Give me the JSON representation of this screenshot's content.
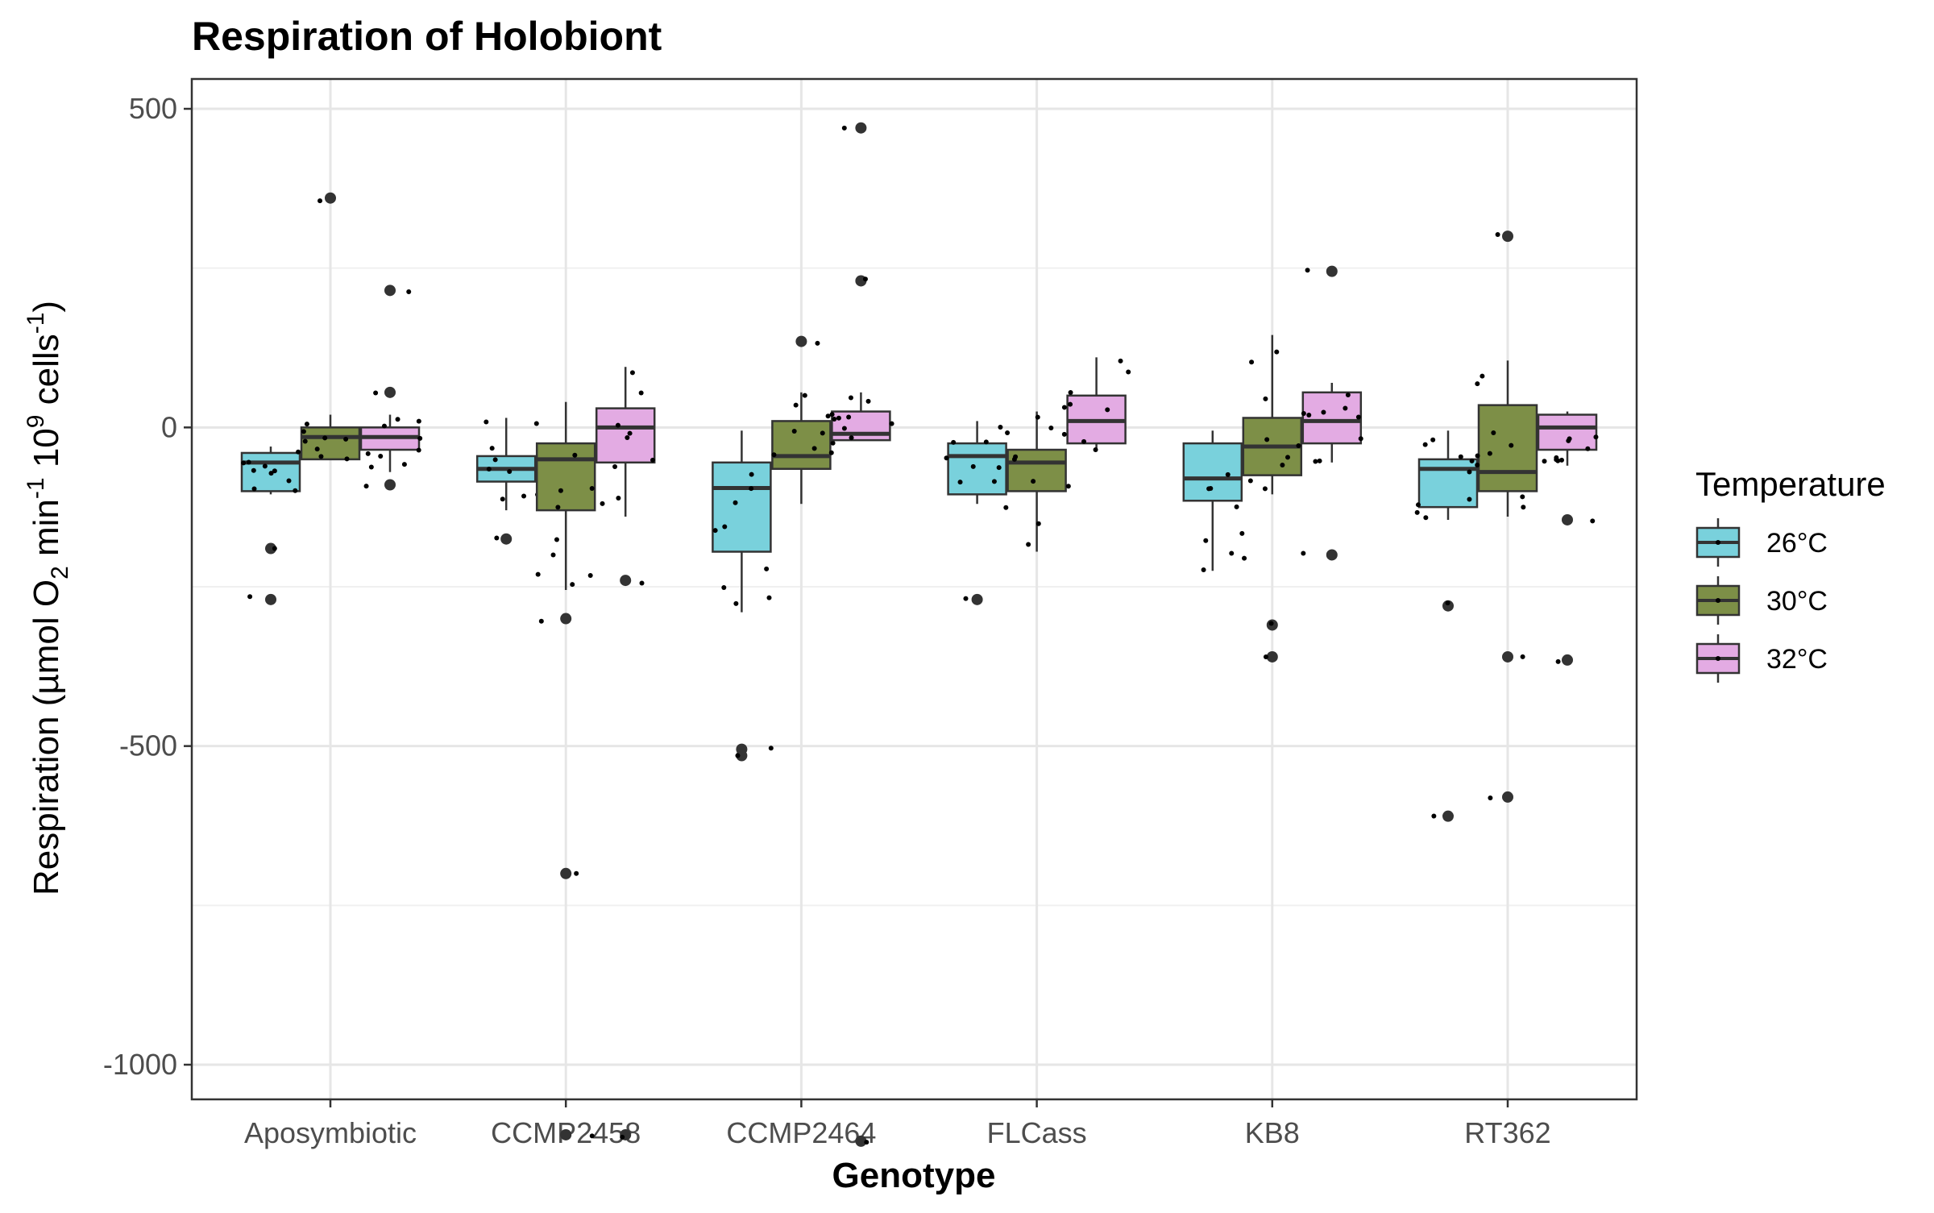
{
  "chart_data": {
    "type": "box",
    "title": "Respiration of Holobiont",
    "xlabel": "Genotype",
    "ylabel": "Respiration (µmol O₂ min⁻¹ 10⁹ cells⁻¹)",
    "ylabel_parts": {
      "main": "Respiration (µmol O",
      "sub1": "2",
      "mid1": " min",
      "sup1": "-1",
      "mid2": " 10",
      "sup2": "9",
      "mid3": " cells",
      "sup3": "-1",
      "end": ")"
    },
    "ylim": [
      -1200,
      550
    ],
    "yticks": [
      500,
      0,
      -500,
      -1000
    ],
    "ytick_labels": [
      "500",
      "0",
      "-500",
      "-1000"
    ],
    "grid": true,
    "legend": {
      "title": "Temperature",
      "position": "right",
      "entries": [
        {
          "name": "26°C",
          "color": "#79d1dc"
        },
        {
          "name": "30°C",
          "color": "#7d8f47"
        },
        {
          "name": "32°C",
          "color": "#e3abe3"
        }
      ]
    },
    "categories": [
      "Aposymbiotic",
      "CCMP2458",
      "CCMP2464",
      "FLCass",
      "KB8",
      "RT362"
    ],
    "series": [
      {
        "name": "26°C",
        "color": "#79d1dc",
        "boxes": [
          {
            "q1": -100,
            "median": -55,
            "q3": -40,
            "lower": -105,
            "upper": -30,
            "outliers": [
              -190,
              -270
            ]
          },
          {
            "q1": -85,
            "median": -65,
            "q3": -45,
            "lower": -130,
            "upper": 15,
            "outliers": [
              -175
            ]
          },
          {
            "q1": -195,
            "median": -95,
            "q3": -55,
            "lower": -290,
            "upper": -5,
            "outliers": [
              -505,
              -515
            ]
          },
          {
            "q1": -105,
            "median": -45,
            "q3": -25,
            "lower": -120,
            "upper": 10,
            "outliers": [
              -270
            ]
          },
          {
            "q1": -115,
            "median": -80,
            "q3": -25,
            "lower": -225,
            "upper": -5,
            "outliers": []
          },
          {
            "q1": -125,
            "median": -65,
            "q3": -50,
            "lower": -145,
            "upper": -5,
            "outliers": [
              -280,
              -610
            ]
          }
        ]
      },
      {
        "name": "30°C",
        "color": "#7d8f47",
        "boxes": [
          {
            "q1": -50,
            "median": -15,
            "q3": 0,
            "lower": -50,
            "upper": 20,
            "outliers": [
              360
            ]
          },
          {
            "q1": -130,
            "median": -50,
            "q3": -25,
            "lower": -255,
            "upper": 40,
            "outliers": [
              -300,
              -700,
              -1110
            ]
          },
          {
            "q1": -65,
            "median": -45,
            "q3": 10,
            "lower": -120,
            "upper": 55,
            "outliers": [
              135
            ]
          },
          {
            "q1": -100,
            "median": -55,
            "q3": -35,
            "lower": -195,
            "upper": 25,
            "outliers": []
          },
          {
            "q1": -75,
            "median": -30,
            "q3": 15,
            "lower": -105,
            "upper": 145,
            "outliers": [
              -310,
              -360
            ]
          },
          {
            "q1": -100,
            "median": -70,
            "q3": 35,
            "lower": -140,
            "upper": 105,
            "outliers": [
              300,
              -360,
              -580
            ]
          }
        ]
      },
      {
        "name": "32°C",
        "color": "#e3abe3",
        "boxes": [
          {
            "q1": -35,
            "median": -15,
            "q3": 0,
            "lower": -70,
            "upper": 20,
            "outliers": [
              215,
              55,
              -90
            ]
          },
          {
            "q1": -55,
            "median": 0,
            "q3": 30,
            "lower": -140,
            "upper": 95,
            "outliers": [
              -240,
              -1110
            ]
          },
          {
            "q1": -20,
            "median": -10,
            "q3": 25,
            "lower": -20,
            "upper": 55,
            "outliers": [
              470,
              230,
              -1120
            ]
          },
          {
            "q1": -25,
            "median": 10,
            "q3": 50,
            "lower": -35,
            "upper": 110,
            "outliers": []
          },
          {
            "q1": -25,
            "median": 10,
            "q3": 55,
            "lower": -55,
            "upper": 70,
            "outliers": [
              245,
              -200
            ]
          },
          {
            "q1": -35,
            "median": 0,
            "q3": 20,
            "lower": -60,
            "upper": 25,
            "outliers": [
              -145,
              -365
            ]
          }
        ]
      }
    ]
  }
}
